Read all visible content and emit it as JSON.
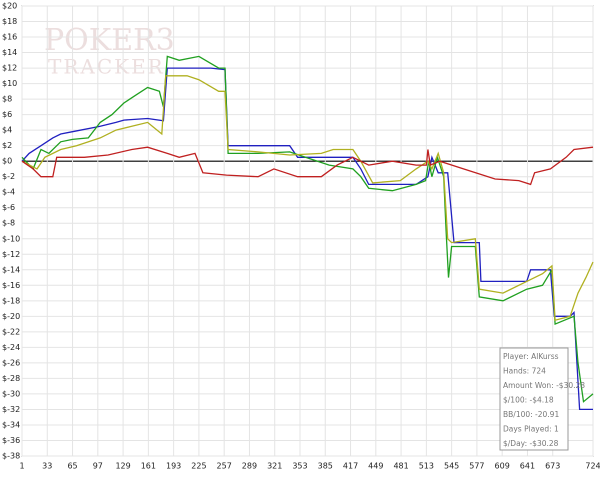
{
  "chart_data": {
    "type": "line",
    "watermark": [
      "POKER3",
      "TRACKER"
    ],
    "xlim": [
      1,
      724
    ],
    "xticks": [
      1,
      33,
      65,
      97,
      129,
      161,
      193,
      225,
      257,
      289,
      321,
      353,
      385,
      417,
      449,
      481,
      513,
      545,
      577,
      609,
      641,
      673,
      724
    ],
    "ylim": [
      -38,
      20
    ],
    "yticks": [
      {
        "value": 20,
        "label": "$20"
      },
      {
        "value": 18,
        "label": "$18"
      },
      {
        "value": 16,
        "label": "$16"
      },
      {
        "value": 14,
        "label": "$14"
      },
      {
        "value": 12,
        "label": "$12"
      },
      {
        "value": 10,
        "label": "$10"
      },
      {
        "value": 8,
        "label": "$8"
      },
      {
        "value": 6,
        "label": "$6"
      },
      {
        "value": 4,
        "label": "$4"
      },
      {
        "value": 2,
        "label": "$2"
      },
      {
        "value": 0,
        "label": "$0"
      },
      {
        "value": -2,
        "label": "$-2"
      },
      {
        "value": -4,
        "label": "$-4"
      },
      {
        "value": -6,
        "label": "$-6"
      },
      {
        "value": -8,
        "label": "$-8"
      },
      {
        "value": -10,
        "label": "$-10"
      },
      {
        "value": -12,
        "label": "$-12"
      },
      {
        "value": -14,
        "label": "$-14"
      },
      {
        "value": -16,
        "label": "$-16"
      },
      {
        "value": -18,
        "label": "$-18"
      },
      {
        "value": -20,
        "label": "$-20"
      },
      {
        "value": -22,
        "label": "$-22"
      },
      {
        "value": -24,
        "label": "$-24"
      },
      {
        "value": -26,
        "label": "$-26"
      },
      {
        "value": -28,
        "label": "$-28"
      },
      {
        "value": -30,
        "label": "$-30"
      },
      {
        "value": -32,
        "label": "$-32"
      },
      {
        "value": -34,
        "label": "$-34"
      },
      {
        "value": -36,
        "label": "$-36"
      },
      {
        "value": -38,
        "label": "$-38"
      }
    ],
    "grid": true,
    "series": [
      {
        "color": "#2020c0",
        "x": [
          1,
          10,
          25,
          40,
          50,
          65,
          100,
          120,
          130,
          160,
          180,
          185,
          240,
          258,
          262,
          300,
          340,
          350,
          380,
          420,
          430,
          440,
          480,
          500,
          515,
          520,
          528,
          540,
          548,
          580,
          582,
          640,
          645,
          670,
          675,
          695,
          700,
          707,
          724
        ],
        "values": [
          0,
          1,
          2,
          3,
          3.5,
          3.8,
          4.5,
          5,
          5.3,
          5.5,
          5.2,
          12,
          12,
          11.8,
          2,
          2,
          2,
          0.5,
          0.5,
          0.5,
          -1,
          -3,
          -3,
          -3,
          -2,
          0.5,
          -1.5,
          -1.5,
          -10.5,
          -10.5,
          -15.5,
          -15.5,
          -14,
          -14,
          -20,
          -20,
          -19.5,
          -32,
          -32
        ]
      },
      {
        "color": "#20a020",
        "x": [
          1,
          15,
          25,
          35,
          50,
          65,
          85,
          100,
          115,
          130,
          145,
          160,
          175,
          180,
          185,
          200,
          225,
          250,
          258,
          262,
          300,
          340,
          360,
          390,
          420,
          430,
          440,
          470,
          500,
          512,
          516,
          520,
          527,
          535,
          538,
          541,
          545,
          575,
          580,
          610,
          640,
          660,
          672,
          676,
          700,
          705,
          712,
          724
        ],
        "values": [
          0.5,
          -1,
          1.5,
          1,
          2.5,
          2.8,
          3,
          5,
          6,
          7.5,
          8.5,
          9.5,
          9,
          7,
          13.5,
          13,
          13.5,
          12,
          12,
          1,
          1,
          1.2,
          0.5,
          -0.5,
          -1,
          -2,
          -3.5,
          -3.8,
          -3,
          -2.5,
          0,
          -2,
          0.5,
          -2,
          -9,
          -15,
          -11,
          -11,
          -17.5,
          -18,
          -16.5,
          -16,
          -14,
          -21,
          -20,
          -26,
          -31,
          -30
        ]
      },
      {
        "color": "#b0b020",
        "x": [
          1,
          20,
          30,
          50,
          70,
          100,
          120,
          140,
          160,
          178,
          183,
          210,
          225,
          250,
          258,
          262,
          300,
          340,
          380,
          395,
          420,
          430,
          445,
          480,
          500,
          515,
          520,
          528,
          535,
          540,
          545,
          575,
          580,
          610,
          640,
          660,
          672,
          676,
          695,
          705,
          715,
          724
        ],
        "values": [
          0,
          -1,
          0.5,
          1.5,
          2,
          3,
          4,
          4.5,
          5,
          3.5,
          11,
          11,
          10.5,
          9,
          9,
          1.5,
          1.2,
          0.8,
          1,
          1.5,
          1.5,
          0,
          -2.8,
          -2.5,
          -1,
          0,
          -1,
          1,
          -1.5,
          -10,
          -10.5,
          -10,
          -16.5,
          -17,
          -15.5,
          -14.5,
          -13.5,
          -20.5,
          -20,
          -17,
          -15,
          -13
        ]
      },
      {
        "color": "#c02020",
        "x": [
          1,
          15,
          25,
          40,
          45,
          80,
          110,
          140,
          160,
          185,
          200,
          220,
          230,
          260,
          300,
          320,
          350,
          380,
          400,
          420,
          440,
          470,
          500,
          513,
          515,
          518,
          530,
          560,
          600,
          630,
          645,
          650,
          670,
          690,
          700,
          724
        ],
        "values": [
          0,
          -1,
          -2,
          -2,
          0.5,
          0.5,
          0.8,
          1.5,
          1.8,
          1,
          0.5,
          1,
          -1.5,
          -1.8,
          -2,
          -1,
          -2,
          -2,
          -0.5,
          0.5,
          -0.5,
          0,
          -0.5,
          -0.5,
          1.5,
          -0.5,
          0,
          -1,
          -2.3,
          -2.5,
          -3,
          -1.5,
          -1,
          0.5,
          1.5,
          1.8
        ]
      }
    ],
    "stats": [
      "Player: AlKurss",
      "Hands: 724",
      "Amount Won: -$30.28",
      "$/100: -$4.18",
      "BB/100: -20.91",
      "Days Played: 1",
      "$/Day: -$30.28"
    ]
  }
}
